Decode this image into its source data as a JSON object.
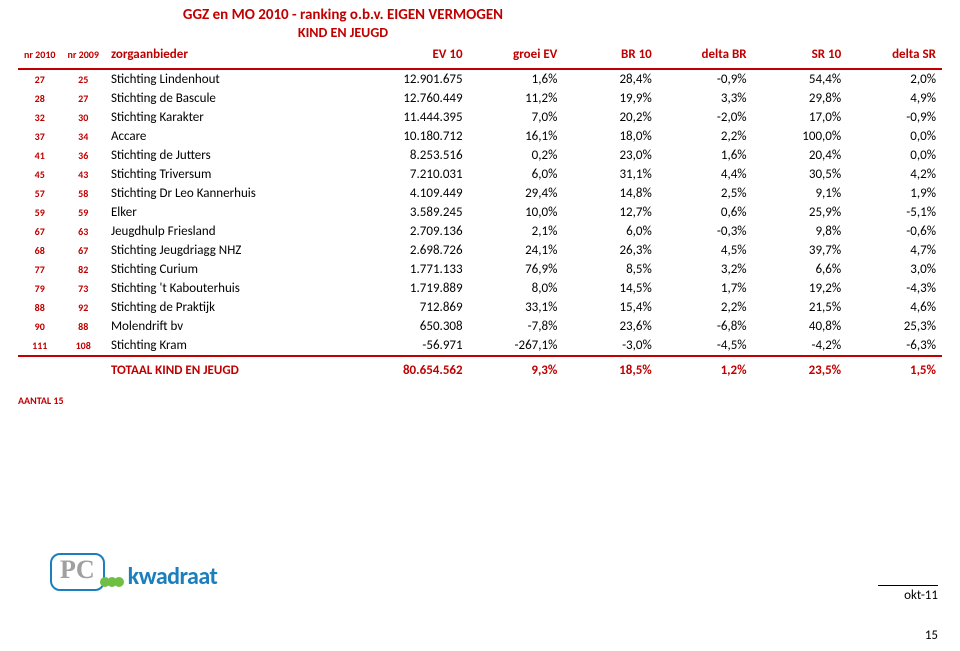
{
  "title": "GGZ en MO 2010 - ranking o.b.v. EIGEN VERMOGEN",
  "subtitle": "KIND EN JEUGD",
  "header": {
    "nr2010": "nr 2010",
    "nr2009": "nr 2009",
    "zorg": "zorgaanbieder",
    "ev10": "EV 10",
    "groei": "groei EV",
    "br10": "BR 10",
    "dbr": "delta BR",
    "sr10": "SR 10",
    "dsr": "delta SR"
  },
  "rows": [
    {
      "nr2010": "27",
      "nr2009": "25",
      "zorg": "Stichting Lindenhout",
      "ev": "12.901.675",
      "g": "1,6%",
      "br": "28,4%",
      "dbr": "-0,9%",
      "sr": "54,4%",
      "dsr": "2,0%"
    },
    {
      "nr2010": "28",
      "nr2009": "27",
      "zorg": "Stichting de Bascule",
      "ev": "12.760.449",
      "g": "11,2%",
      "br": "19,9%",
      "dbr": "3,3%",
      "sr": "29,8%",
      "dsr": "4,9%"
    },
    {
      "nr2010": "32",
      "nr2009": "30",
      "zorg": "Stichting Karakter",
      "ev": "11.444.395",
      "g": "7,0%",
      "br": "20,2%",
      "dbr": "-2,0%",
      "sr": "17,0%",
      "dsr": "-0,9%"
    },
    {
      "nr2010": "37",
      "nr2009": "34",
      "zorg": "Accare",
      "ev": "10.180.712",
      "g": "16,1%",
      "br": "18,0%",
      "dbr": "2,2%",
      "sr": "100,0%",
      "dsr": "0,0%"
    },
    {
      "nr2010": "41",
      "nr2009": "36",
      "zorg": "Stichting de Jutters",
      "ev": "8.253.516",
      "g": "0,2%",
      "br": "23,0%",
      "dbr": "1,6%",
      "sr": "20,4%",
      "dsr": "0,0%"
    },
    {
      "nr2010": "45",
      "nr2009": "43",
      "zorg": "Stichting Triversum",
      "ev": "7.210.031",
      "g": "6,0%",
      "br": "31,1%",
      "dbr": "4,4%",
      "sr": "30,5%",
      "dsr": "4,2%"
    },
    {
      "nr2010": "57",
      "nr2009": "58",
      "zorg": "Stichting Dr Leo Kannerhuis",
      "ev": "4.109.449",
      "g": "29,4%",
      "br": "14,8%",
      "dbr": "2,5%",
      "sr": "9,1%",
      "dsr": "1,9%"
    },
    {
      "nr2010": "59",
      "nr2009": "59",
      "zorg": "Elker",
      "ev": "3.589.245",
      "g": "10,0%",
      "br": "12,7%",
      "dbr": "0,6%",
      "sr": "25,9%",
      "dsr": "-5,1%"
    },
    {
      "nr2010": "67",
      "nr2009": "63",
      "zorg": "Jeugdhulp Friesland",
      "ev": "2.709.136",
      "g": "2,1%",
      "br": "6,0%",
      "dbr": "-0,3%",
      "sr": "9,8%",
      "dsr": "-0,6%"
    },
    {
      "nr2010": "68",
      "nr2009": "67",
      "zorg": "Stichting Jeugdriagg NHZ",
      "ev": "2.698.726",
      "g": "24,1%",
      "br": "26,3%",
      "dbr": "4,5%",
      "sr": "39,7%",
      "dsr": "4,7%"
    },
    {
      "nr2010": "77",
      "nr2009": "82",
      "zorg": "Stichting Curium",
      "ev": "1.771.133",
      "g": "76,9%",
      "br": "8,5%",
      "dbr": "3,2%",
      "sr": "6,6%",
      "dsr": "3,0%"
    },
    {
      "nr2010": "79",
      "nr2009": "73",
      "zorg": "Stichting 't Kabouterhuis",
      "ev": "1.719.889",
      "g": "8,0%",
      "br": "14,5%",
      "dbr": "1,7%",
      "sr": "19,2%",
      "dsr": "-4,3%"
    },
    {
      "nr2010": "88",
      "nr2009": "92",
      "zorg": "Stichting de Praktijk",
      "ev": "712.869",
      "g": "33,1%",
      "br": "15,4%",
      "dbr": "2,2%",
      "sr": "21,5%",
      "dsr": "4,6%"
    },
    {
      "nr2010": "90",
      "nr2009": "88",
      "zorg": "Molendrift bv",
      "ev": "650.308",
      "g": "-7,8%",
      "br": "23,6%",
      "dbr": "-6,8%",
      "sr": "40,8%",
      "dsr": "25,3%"
    },
    {
      "nr2010": "111",
      "nr2009": "108",
      "zorg": "Stichting Kram",
      "ev": "-56.971",
      "g": "-267,1%",
      "br": "-3,0%",
      "dbr": "-4,5%",
      "sr": "-4,2%",
      "dsr": "-6,3%"
    }
  ],
  "totals": {
    "label": "TOTAAL KIND EN JEUGD",
    "ev": "80.654.562",
    "g": "9,3%",
    "br": "18,5%",
    "dbr": "1,2%",
    "sr": "23,5%",
    "dsr": "1,5%"
  },
  "aantal": "AANTAL 15",
  "logo": {
    "pc": "PC",
    "brand": "kwadraat"
  },
  "footer": {
    "date": "okt-11",
    "page": "15"
  }
}
